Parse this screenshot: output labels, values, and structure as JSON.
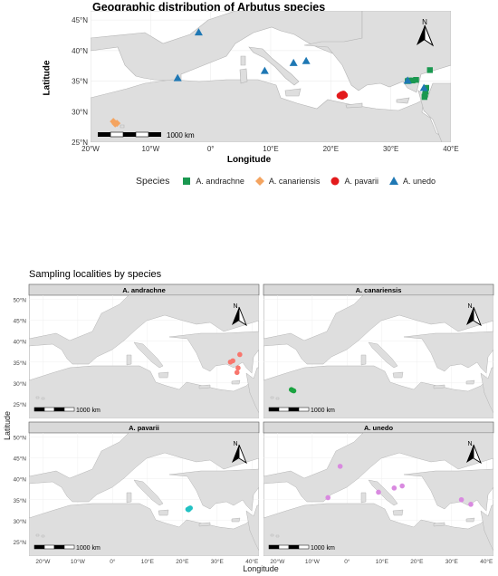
{
  "top_map": {
    "title": "Geographic distribution of Arbutus species",
    "xlabel": "Longitude",
    "ylabel": "Latitude",
    "x_ticks": [
      "20°W",
      "10°W",
      "0°",
      "10°E",
      "20°E",
      "30°E",
      "40°E"
    ],
    "y_ticks": [
      "25°N",
      "30°N",
      "35°N",
      "40°N",
      "45°N"
    ],
    "scalebar_label": "1000 km",
    "north_label": "N"
  },
  "legend": {
    "title": "Species",
    "items": [
      {
        "label": "A. andrachne",
        "color": "#1a9850",
        "shape": "square"
      },
      {
        "label": "A. canariensis",
        "color": "#f4a460",
        "shape": "diamond"
      },
      {
        "label": "A. pavarii",
        "color": "#e31a1c",
        "shape": "circle"
      },
      {
        "label": "A. unedo",
        "color": "#1f78b4",
        "shape": "triangle"
      }
    ]
  },
  "facet_map": {
    "title": "Sampling localities by species",
    "xlabel": "Longitude",
    "ylabel": "Latitude",
    "x_ticks": [
      "20°W",
      "10°W",
      "0°",
      "10°E",
      "20°E",
      "30°E",
      "40°E"
    ],
    "y_ticks": [
      "25°N",
      "30°N",
      "35°N",
      "40°N",
      "45°N",
      "50°N"
    ],
    "scalebar_label": "1000 km",
    "north_label": "N",
    "panels": [
      {
        "strip": "A. andrachne",
        "color": "#f8766d"
      },
      {
        "strip": "A. canariensis",
        "color": "#1aa340"
      },
      {
        "strip": "A. pavarii",
        "color": "#22c1c3"
      },
      {
        "strip": "A. unedo",
        "color": "#d98ae0"
      }
    ]
  },
  "chart_data": [
    {
      "type": "scatter",
      "title": "Geographic distribution of Arbutus species",
      "xlabel": "Longitude",
      "ylabel": "Latitude",
      "xlim": [
        -20,
        40
      ],
      "ylim": [
        25,
        46.5
      ],
      "grid": true,
      "legend_position": "bottom",
      "series": [
        {
          "name": "A. andrachne",
          "points": [
            [
              36.5,
              36.8
            ],
            [
              35.9,
              33.9
            ],
            [
              35.8,
              33.3
            ],
            [
              35.7,
              32.8
            ],
            [
              35.6,
              32.4
            ],
            [
              34.2,
              35.2
            ],
            [
              33.6,
              35.1
            ],
            [
              33.0,
              35.1
            ],
            [
              32.8,
              35.0
            ]
          ]
        },
        {
          "name": "A. canariensis",
          "points": [
            [
              -15.6,
              28.1
            ],
            [
              -16.2,
              28.4
            ],
            [
              -15.9,
              28.0
            ]
          ]
        },
        {
          "name": "A. pavarii",
          "points": [
            [
              21.5,
              32.6
            ],
            [
              21.8,
              32.8
            ],
            [
              22.1,
              32.9
            ],
            [
              22.3,
              32.7
            ],
            [
              21.9,
              32.5
            ]
          ]
        },
        {
          "name": "A. unedo",
          "points": [
            [
              -2.0,
              43.0
            ],
            [
              -5.5,
              35.5
            ],
            [
              9.0,
              36.7
            ],
            [
              13.8,
              38.0
            ],
            [
              15.9,
              38.3
            ],
            [
              32.8,
              35.1
            ],
            [
              35.5,
              33.9
            ]
          ]
        }
      ]
    },
    {
      "type": "scatter",
      "title": "Sampling localities by species",
      "xlabel": "Longitude",
      "ylabel": "Latitude",
      "xlim": [
        -24,
        42
      ],
      "ylim": [
        21.5,
        51
      ],
      "facets": [
        {
          "name": "A. andrachne",
          "points": [
            [
              36.5,
              36.8
            ],
            [
              34.5,
              35.3
            ],
            [
              33.8,
              35.0
            ],
            [
              36.0,
              33.6
            ],
            [
              35.7,
              32.5
            ]
          ]
        },
        {
          "name": "A. canariensis",
          "points": [
            [
              -15.6,
              28.2
            ],
            [
              -16.0,
              28.4
            ],
            [
              -15.3,
              28.1
            ]
          ]
        },
        {
          "name": "A. pavarii",
          "points": [
            [
              21.6,
              32.7
            ],
            [
              22.0,
              32.9
            ],
            [
              22.3,
              33.0
            ],
            [
              21.8,
              32.6
            ]
          ]
        },
        {
          "name": "A. unedo",
          "points": [
            [
              -2.0,
              43.0
            ],
            [
              -5.5,
              35.5
            ],
            [
              9.0,
              36.8
            ],
            [
              13.5,
              37.8
            ],
            [
              15.8,
              38.3
            ],
            [
              32.8,
              35.0
            ],
            [
              35.5,
              33.9
            ]
          ]
        }
      ]
    }
  ]
}
